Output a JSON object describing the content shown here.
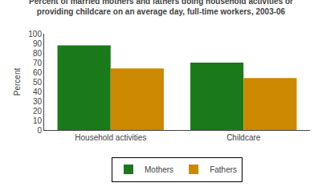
{
  "chart_data": {
    "type": "bar",
    "title": "Percent of married mothers and fathers doing household activities or",
    "subtitle": "providing childcare on an average day, full-time workers, 2003-06",
    "categories": [
      "Household activities",
      "Childcare"
    ],
    "series": [
      {
        "name": "Mothers",
        "color": "#1a7a1a",
        "values": [
          88,
          70
        ]
      },
      {
        "name": "Fathers",
        "color": "#cc8800",
        "values": [
          64,
          54
        ]
      }
    ],
    "ylabel": "Percent",
    "ylim": [
      0,
      100
    ],
    "yticks": [
      0,
      10,
      20,
      30,
      40,
      50,
      60,
      70,
      80,
      90,
      100
    ],
    "grid": false,
    "legend": "bottom"
  }
}
